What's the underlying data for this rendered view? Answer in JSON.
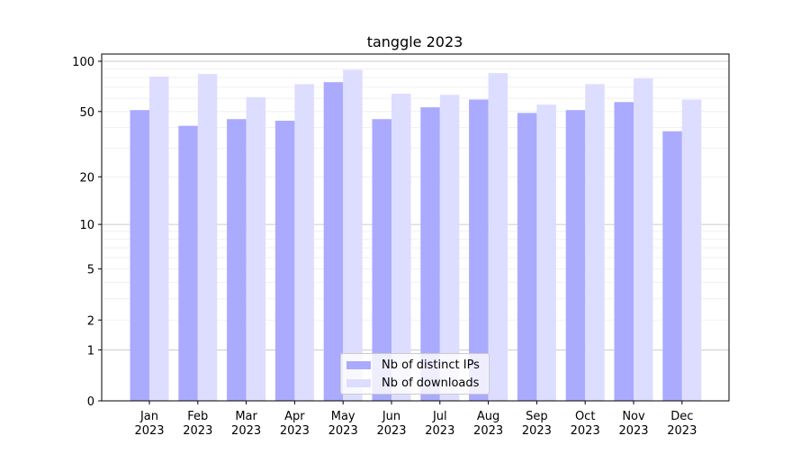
{
  "chart_data": {
    "type": "bar",
    "title": "tanggle 2023",
    "xlabel": "",
    "ylabel": "",
    "yscale": "log(1+y)",
    "ylim": [
      0,
      110
    ],
    "yticks": [
      0,
      1,
      2,
      5,
      10,
      20,
      50,
      100
    ],
    "grid": true,
    "legend": "bottom-center",
    "categories": [
      "Jan\n2023",
      "Feb\n2023",
      "Mar\n2023",
      "Apr\n2023",
      "May\n2023",
      "Jun\n2023",
      "Jul\n2023",
      "Aug\n2023",
      "Sep\n2023",
      "Oct\n2023",
      "Nov\n2023",
      "Dec\n2023"
    ],
    "series": [
      {
        "name": "Nb of distinct IPs",
        "color": "#aaaaff",
        "values": [
          51,
          41,
          45,
          44,
          75,
          45,
          53,
          59,
          49,
          51,
          57,
          38
        ]
      },
      {
        "name": "Nb of downloads",
        "color": "#ddddff",
        "values": [
          81,
          84,
          61,
          73,
          89,
          64,
          63,
          85,
          55,
          73,
          79,
          59
        ]
      }
    ]
  }
}
